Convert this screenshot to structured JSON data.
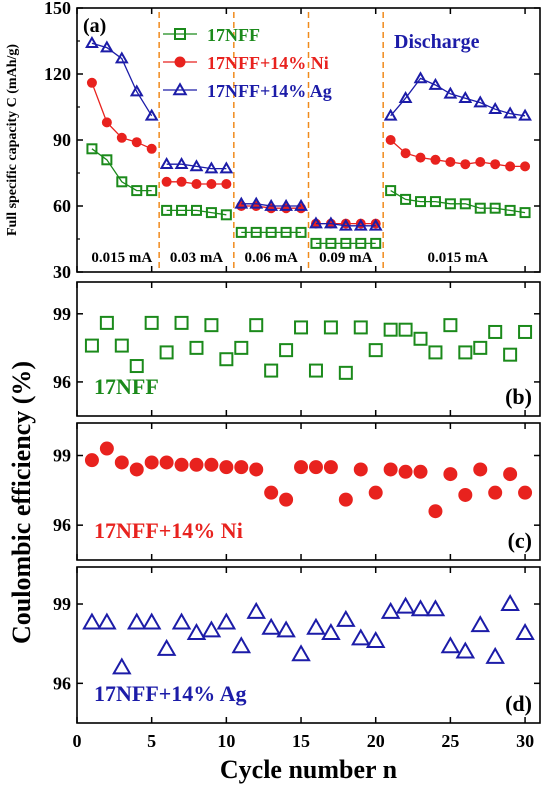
{
  "figure": {
    "x_axis_label": "Cycle number n",
    "x_ticks": [
      0,
      5,
      10,
      15,
      20,
      25,
      30
    ],
    "shared_ylabel": "Coulombic efficiency (%)"
  },
  "chart_data": [
    {
      "type": "line",
      "panel_label": "(a)",
      "title": "Discharge",
      "ylabel": "Full specific capacity C (mAh/g)",
      "xlabel": "Cycle number n",
      "xlim": [
        0,
        31
      ],
      "ylim": [
        30,
        150
      ],
      "yticks": [
        30,
        60,
        90,
        120,
        150
      ],
      "legend_position": "top-left",
      "dividers_x": [
        5.5,
        10.5,
        15.5,
        20.5
      ],
      "current_labels": [
        {
          "text": "0.015 mA",
          "x": 3
        },
        {
          "text": "0.03 mA",
          "x": 8
        },
        {
          "text": "0.06 mA",
          "x": 13
        },
        {
          "text": "0.09 mA",
          "x": 18
        },
        {
          "text": "0.015 mA",
          "x": 25.5
        }
      ],
      "series": [
        {
          "name": "17NFF",
          "marker": "square",
          "color": "#1b8a1b",
          "segments": [
            [
              [
                1,
                86
              ],
              [
                2,
                81
              ],
              [
                3,
                71
              ],
              [
                4,
                67
              ],
              [
                5,
                67
              ]
            ],
            [
              [
                6,
                58
              ],
              [
                7,
                58
              ],
              [
                8,
                58
              ],
              [
                9,
                57
              ],
              [
                10,
                56
              ]
            ],
            [
              [
                11,
                48
              ],
              [
                12,
                48
              ],
              [
                13,
                48
              ],
              [
                14,
                48
              ],
              [
                15,
                48
              ]
            ],
            [
              [
                16,
                43
              ],
              [
                17,
                43
              ],
              [
                18,
                43
              ],
              [
                19,
                43
              ],
              [
                20,
                43
              ]
            ],
            [
              [
                21,
                67
              ],
              [
                22,
                63
              ],
              [
                23,
                62
              ],
              [
                24,
                62
              ],
              [
                25,
                61
              ],
              [
                26,
                61
              ],
              [
                27,
                59
              ],
              [
                28,
                59
              ],
              [
                29,
                58
              ],
              [
                30,
                57
              ]
            ]
          ]
        },
        {
          "name": "17NFF+14% Ni",
          "marker": "circle",
          "color": "#e8221e",
          "segments": [
            [
              [
                1,
                116
              ],
              [
                2,
                98
              ],
              [
                3,
                91
              ],
              [
                4,
                89
              ],
              [
                5,
                86
              ]
            ],
            [
              [
                6,
                71
              ],
              [
                7,
                71
              ],
              [
                8,
                70
              ],
              [
                9,
                70
              ],
              [
                10,
                70
              ]
            ],
            [
              [
                11,
                60
              ],
              [
                12,
                60
              ],
              [
                13,
                59
              ],
              [
                14,
                59
              ],
              [
                15,
                59
              ]
            ],
            [
              [
                16,
                52
              ],
              [
                17,
                52
              ],
              [
                18,
                52
              ],
              [
                19,
                52
              ],
              [
                20,
                52
              ]
            ],
            [
              [
                21,
                90
              ],
              [
                22,
                84
              ],
              [
                23,
                82
              ],
              [
                24,
                81
              ],
              [
                25,
                80
              ],
              [
                26,
                79
              ],
              [
                27,
                80
              ],
              [
                28,
                79
              ],
              [
                29,
                78
              ],
              [
                30,
                78
              ]
            ]
          ]
        },
        {
          "name": "17NFF+14% Ag",
          "marker": "triangle",
          "color": "#1c1ca8",
          "segments": [
            [
              [
                1,
                134
              ],
              [
                2,
                132
              ],
              [
                3,
                127
              ],
              [
                4,
                112
              ],
              [
                5,
                101
              ]
            ],
            [
              [
                6,
                79
              ],
              [
                7,
                79
              ],
              [
                8,
                78
              ],
              [
                9,
                77
              ],
              [
                10,
                77
              ]
            ],
            [
              [
                11,
                61
              ],
              [
                12,
                61
              ],
              [
                13,
                60
              ],
              [
                14,
                60
              ],
              [
                15,
                60
              ]
            ],
            [
              [
                16,
                52
              ],
              [
                17,
                52
              ],
              [
                18,
                51
              ],
              [
                19,
                51
              ],
              [
                20,
                51
              ]
            ],
            [
              [
                21,
                101
              ],
              [
                22,
                109
              ],
              [
                23,
                118
              ],
              [
                24,
                115
              ],
              [
                25,
                111
              ],
              [
                26,
                109
              ],
              [
                27,
                107
              ],
              [
                28,
                104
              ],
              [
                29,
                102
              ],
              [
                30,
                101
              ]
            ]
          ]
        }
      ]
    },
    {
      "type": "scatter",
      "panel_label": "(b)",
      "series_label": "17NFF",
      "marker": "square",
      "color": "#1b8a1b",
      "xlim": [
        0,
        31
      ],
      "ylim": [
        94.5,
        100.4
      ],
      "yticks": [
        96,
        99
      ],
      "x": [
        1,
        2,
        3,
        4,
        5,
        6,
        7,
        8,
        9,
        10,
        11,
        12,
        13,
        14,
        15,
        16,
        17,
        18,
        19,
        20,
        21,
        22,
        23,
        24,
        25,
        26,
        27,
        28,
        29,
        30
      ],
      "y": [
        97.6,
        98.6,
        97.6,
        96.7,
        98.6,
        97.3,
        98.6,
        97.5,
        98.5,
        97.0,
        97.5,
        98.5,
        96.5,
        97.4,
        98.4,
        96.5,
        98.4,
        96.4,
        98.4,
        97.4,
        98.3,
        98.3,
        97.9,
        97.3,
        98.5,
        97.3,
        97.5,
        98.2,
        97.2,
        98.2
      ]
    },
    {
      "type": "scatter",
      "panel_label": "(c)",
      "series_label": "17NFF+14% Ni",
      "marker": "circle",
      "color": "#e8221e",
      "xlim": [
        0,
        31
      ],
      "ylim": [
        94.5,
        100.4
      ],
      "yticks": [
        96,
        99
      ],
      "x": [
        1,
        2,
        3,
        4,
        5,
        6,
        7,
        8,
        9,
        10,
        11,
        12,
        13,
        14,
        15,
        16,
        17,
        18,
        19,
        20,
        21,
        22,
        23,
        24,
        25,
        26,
        27,
        28,
        29,
        30
      ],
      "y": [
        98.8,
        99.3,
        98.7,
        98.4,
        98.7,
        98.7,
        98.6,
        98.6,
        98.6,
        98.5,
        98.5,
        98.4,
        97.4,
        97.1,
        98.5,
        98.5,
        98.5,
        97.1,
        98.4,
        97.4,
        98.4,
        98.3,
        98.3,
        96.6,
        98.2,
        97.3,
        98.4,
        97.4,
        98.2,
        97.4
      ]
    },
    {
      "type": "scatter",
      "panel_label": "(d)",
      "series_label": "17NFF+14% Ag",
      "marker": "triangle",
      "color": "#1c1ca8",
      "xlim": [
        0,
        31
      ],
      "ylim": [
        94.5,
        100.4
      ],
      "yticks": [
        96,
        99
      ],
      "x": [
        1,
        2,
        3,
        4,
        5,
        6,
        7,
        8,
        9,
        10,
        11,
        12,
        13,
        14,
        15,
        16,
        17,
        18,
        19,
        20,
        21,
        22,
        23,
        24,
        25,
        26,
        27,
        28,
        29,
        30
      ],
      "y": [
        98.3,
        98.3,
        96.6,
        98.3,
        98.3,
        97.3,
        98.3,
        97.9,
        98.0,
        98.3,
        97.4,
        98.7,
        98.1,
        98.0,
        97.1,
        98.1,
        97.9,
        98.4,
        97.7,
        97.6,
        98.7,
        98.9,
        98.8,
        98.8,
        97.4,
        97.2,
        98.2,
        97.0,
        99.0,
        97.9
      ]
    }
  ]
}
